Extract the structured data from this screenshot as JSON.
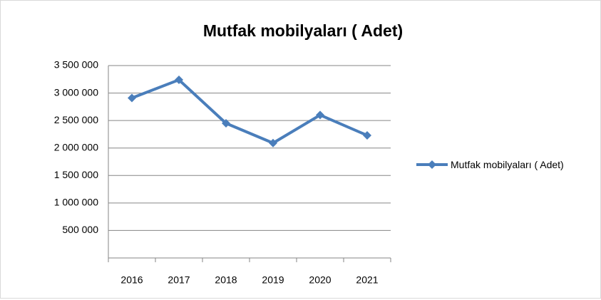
{
  "chart_data": {
    "type": "line",
    "title": "Mutfak mobilyaları ( Adet)",
    "categories": [
      "2016",
      "2017",
      "2018",
      "2019",
      "2020",
      "2021"
    ],
    "series": [
      {
        "name": "Mutfak mobilyaları ( Adet)",
        "color": "#4a7ebb",
        "values": [
          2910000,
          3240000,
          2450000,
          2090000,
          2600000,
          2230000
        ]
      }
    ],
    "ylim": [
      0,
      3500000
    ],
    "yticks": [
      {
        "value": 500000,
        "label": "500 000"
      },
      {
        "value": 1000000,
        "label": "1 000 000"
      },
      {
        "value": 1500000,
        "label": "1 500 000"
      },
      {
        "value": 2000000,
        "label": "2 000 000"
      },
      {
        "value": 2500000,
        "label": "2 500 000"
      },
      {
        "value": 3000000,
        "label": "3 000 000"
      },
      {
        "value": 3500000,
        "label": "3 500 000"
      }
    ],
    "grid": true,
    "legend": "right"
  }
}
